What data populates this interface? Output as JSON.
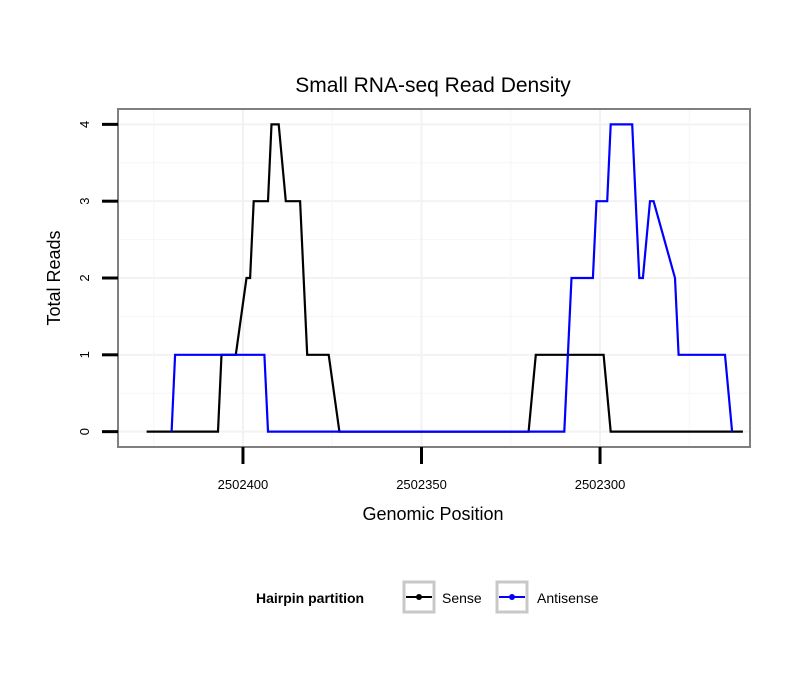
{
  "chart_data": {
    "type": "line",
    "title": "Small RNA-seq Read Density",
    "xlabel": "Genomic Position",
    "ylabel": "Total Reads",
    "xlim": [
      2502435,
      2502258
    ],
    "ylim": [
      -0.2,
      4.2
    ],
    "x_reversed": true,
    "xticks": [
      2502400,
      2502350,
      2502300
    ],
    "xtick_labels": [
      "2502400",
      "2502350",
      "2502300"
    ],
    "yticks": [
      0,
      1,
      2,
      3,
      4
    ],
    "ytick_labels": [
      "0",
      "1",
      "2",
      "3",
      "4"
    ],
    "grid": true,
    "legend": {
      "title": "Hairpin partition",
      "position": "bottom",
      "entries": [
        "Sense",
        "Antisense"
      ]
    },
    "series": [
      {
        "name": "Sense",
        "color": "#000000",
        "x": [
          2502427,
          2502419,
          2502418,
          2502407,
          2502406,
          2502402,
          2502399,
          2502398,
          2502397,
          2502393,
          2502392,
          2502390,
          2502388,
          2502384,
          2502382,
          2502376,
          2502373,
          2502342,
          2502320,
          2502318,
          2502299,
          2502297,
          2502260
        ],
        "values": [
          0,
          0,
          0,
          0,
          1,
          1,
          2,
          2,
          3,
          3,
          4,
          4,
          3,
          3,
          1,
          1,
          0,
          0,
          0,
          1,
          1,
          0,
          0
        ]
      },
      {
        "name": "Antisense",
        "color": "#0000ff",
        "x": [
          2502420,
          2502419,
          2502412,
          2502394,
          2502393,
          2502374,
          2502322,
          2502310,
          2502308,
          2502302,
          2502301,
          2502298,
          2502297,
          2502291,
          2502290,
          2502289,
          2502288,
          2502286,
          2502285,
          2502279,
          2502278,
          2502265,
          2502263
        ],
        "values": [
          0,
          1,
          1,
          1,
          0,
          0,
          0,
          0,
          2,
          2,
          3,
          3,
          4,
          4,
          3,
          2,
          2,
          3,
          3,
          2,
          1,
          1,
          0
        ]
      }
    ]
  }
}
